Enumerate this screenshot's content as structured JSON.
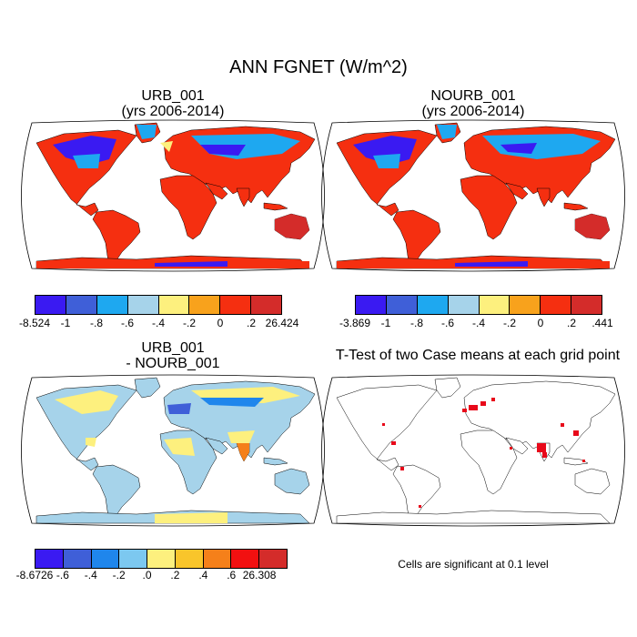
{
  "title": "ANN FGNET (W/m^2)",
  "panels": [
    {
      "line1": "URB_001",
      "line2": "(yrs 2006-2014)",
      "colorbar": {
        "colors": [
          "#3a1af2",
          "#3f5fd8",
          "#1ea8f0",
          "#a6d3ea",
          "#fdf07e",
          "#f8a21c",
          "#f52f10",
          "#d42c2a"
        ],
        "labels": [
          "-8.524",
          "-1",
          "-.8",
          "-.6",
          "-.4",
          "-.2",
          "0",
          ".2",
          "26.424"
        ]
      }
    },
    {
      "line1": "NOURB_001",
      "line2": "(yrs 2006-2014)",
      "colorbar": {
        "colors": [
          "#3a1af2",
          "#3f5fd8",
          "#1ea8f0",
          "#a6d3ea",
          "#fdf07e",
          "#f8a21c",
          "#f52f10",
          "#d42c2a"
        ],
        "labels": [
          "-3.869",
          "-1",
          "-.8",
          "-.6",
          "-.4",
          "-.2",
          "0",
          ".2",
          ".441"
        ]
      }
    },
    {
      "line1": "URB_001",
      "line2": "- NOURB_001",
      "colorbar": {
        "colors": [
          "#3a1af2",
          "#3f5fd8",
          "#1f86ec",
          "#7cc8f0",
          "#fdf07e",
          "#f9c52b",
          "#f5801a",
          "#f21010",
          "#d42c2a"
        ],
        "labels": [
          "-8.6726",
          "-.6",
          "-.4",
          "-.2",
          ".0",
          ".2",
          ".4",
          ".6",
          "26.308"
        ]
      }
    },
    {
      "line1": "T-Test of two Case means at each grid point",
      "line2": ""
    }
  ],
  "note": "Cells are significant at 0.1 level",
  "colors": {
    "ocean": "#ffffff",
    "land_warm": "#f52f10",
    "land_cold": "#3a1af2",
    "land_cool": "#1ea8f0",
    "diff_land": "#a6d3ea",
    "diff_yellow": "#fdf07e",
    "signif": "#e8091a"
  }
}
